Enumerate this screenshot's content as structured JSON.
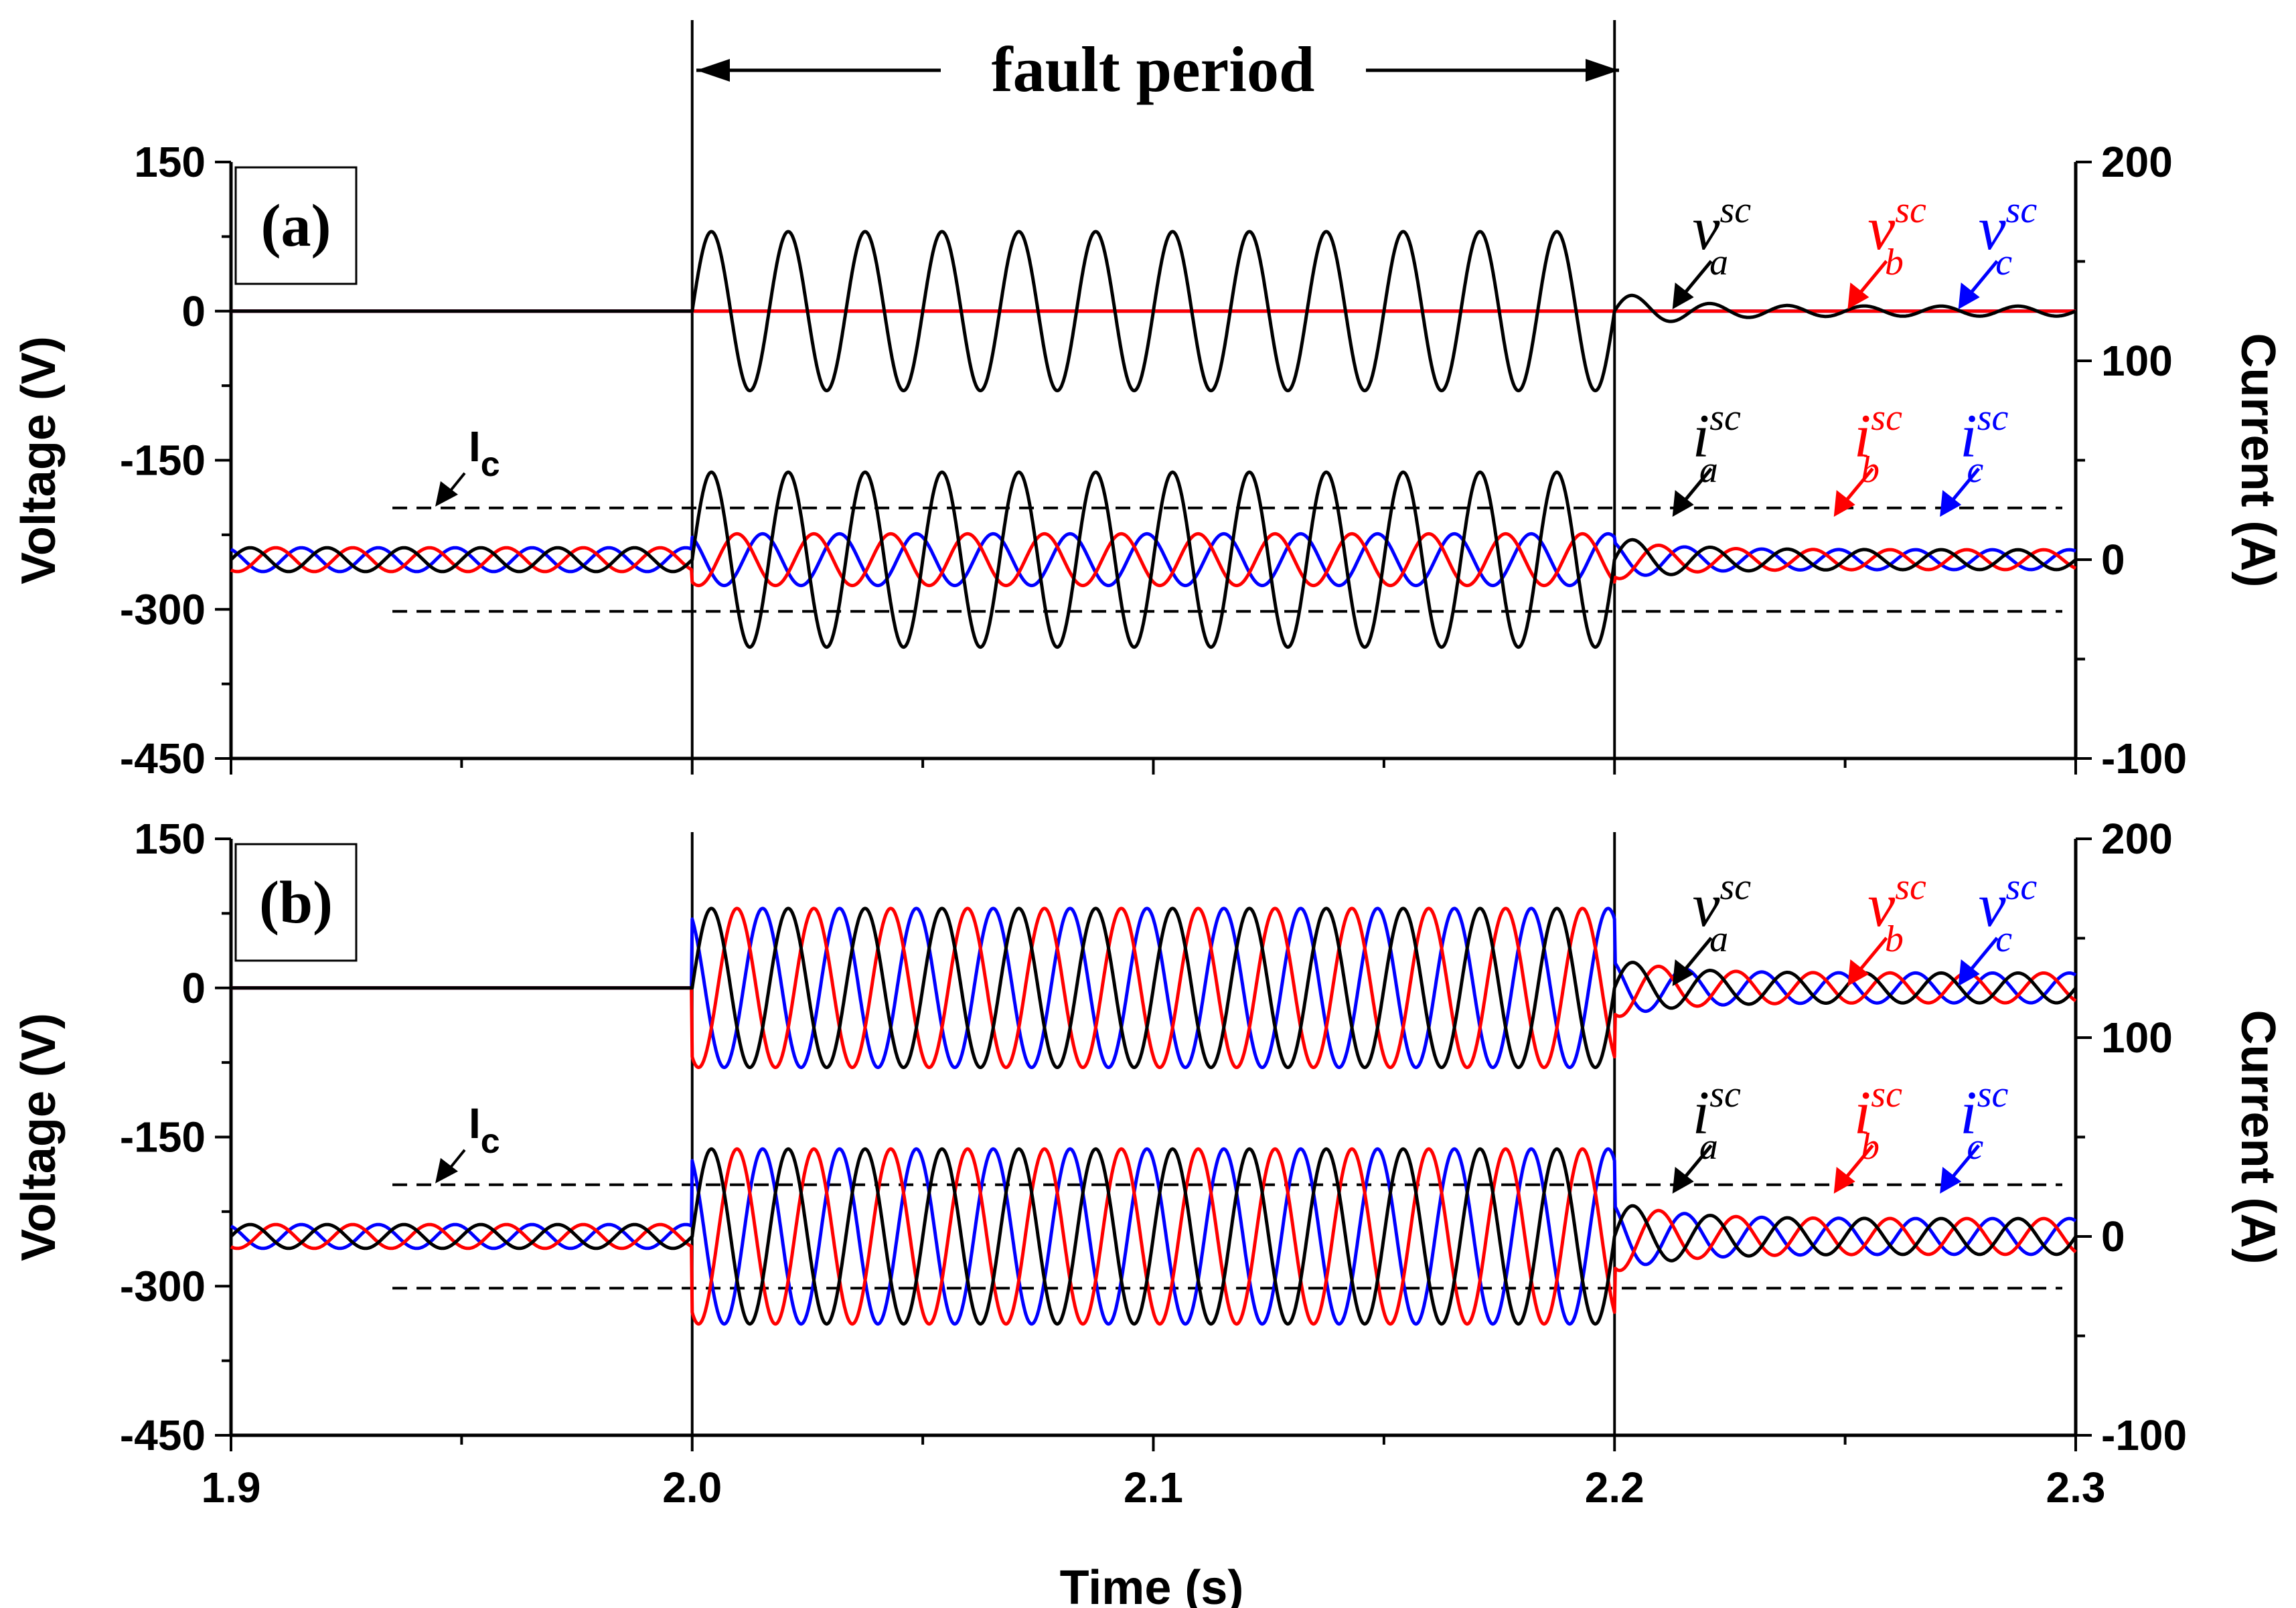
{
  "figure": {
    "header_label": "fault period",
    "xlabel": "Time (s)",
    "colors": {
      "a": "#000000",
      "b": "#ff0000",
      "c": "#0000ff"
    }
  },
  "chart_data": [
    {
      "type": "line",
      "panel_label": "(a)",
      "xlim": [
        1.9,
        2.3
      ],
      "x_ticks": [
        "1.9",
        "2.0",
        "2.1",
        "2.2",
        "2.3"
      ],
      "ylabel_left": "Voltage (V)",
      "ylabel_right": "Current (A)",
      "ylim_left": [
        -450,
        150
      ],
      "ylim_right": [
        -100,
        200
      ],
      "y_ticks_left": [
        "150",
        "0",
        "-150",
        "-300",
        "-450"
      ],
      "y_ticks_right": [
        "200",
        "100",
        "0",
        "-100"
      ],
      "fault_start": 2.0,
      "fault_end": 2.2,
      "frequency_hz": 60,
      "current_limit_label_main": "I",
      "current_limit_label_sub": "c",
      "current_limit": [
        -26,
        26
      ],
      "voltage_series": [
        {
          "phase": "a",
          "label_main": "v",
          "label_sup": "sc",
          "label_sub": "a",
          "pre_fault_amplitude": 0,
          "fault_amplitude": 80,
          "post_fault_initial": 20,
          "post_fault_final": 5
        },
        {
          "phase": "b",
          "label_main": "v",
          "label_sup": "sc",
          "label_sub": "b",
          "pre_fault_amplitude": 0,
          "fault_amplitude": 0,
          "post_fault_initial": 0,
          "post_fault_final": 0
        },
        {
          "phase": "c",
          "label_main": "v",
          "label_sup": "sc",
          "label_sub": "c",
          "pre_fault_amplitude": 0,
          "fault_amplitude": 0,
          "post_fault_initial": 0,
          "post_fault_final": 0
        }
      ],
      "current_series": [
        {
          "phase": "a",
          "label_main": "i",
          "label_sup": "sc",
          "label_sub": "a",
          "pre_fault_amplitude": 6,
          "fault_amplitude": 44,
          "post_fault_initial": 12,
          "post_fault_final": 5
        },
        {
          "phase": "b",
          "label_main": "i",
          "label_sup": "sc",
          "label_sub": "b",
          "pre_fault_amplitude": 6,
          "fault_amplitude": 13,
          "post_fault_initial": 10,
          "post_fault_final": 5
        },
        {
          "phase": "c",
          "label_main": "i",
          "label_sup": "sc",
          "label_sub": "c",
          "pre_fault_amplitude": 6,
          "fault_amplitude": 13,
          "post_fault_initial": 10,
          "post_fault_final": 5
        }
      ]
    },
    {
      "type": "line",
      "panel_label": "(b)",
      "xlim": [
        1.9,
        2.3
      ],
      "x_ticks": [
        "1.9",
        "2.0",
        "2.1",
        "2.2",
        "2.3"
      ],
      "ylabel_left": "Voltage (V)",
      "ylabel_right": "Current (A)",
      "ylim_left": [
        -450,
        150
      ],
      "ylim_right": [
        -100,
        200
      ],
      "y_ticks_left": [
        "150",
        "0",
        "-150",
        "-300",
        "-450"
      ],
      "y_ticks_right": [
        "200",
        "100",
        "0",
        "-100"
      ],
      "fault_start": 2.0,
      "fault_end": 2.2,
      "frequency_hz": 60,
      "current_limit_label_main": "I",
      "current_limit_label_sub": "c",
      "current_limit": [
        -26,
        26
      ],
      "voltage_series": [
        {
          "phase": "a",
          "label_main": "v",
          "label_sup": "sc",
          "label_sub": "a",
          "pre_fault_amplitude": 0,
          "fault_amplitude": 80,
          "post_fault_initial": 30,
          "post_fault_final": 15
        },
        {
          "phase": "b",
          "label_main": "v",
          "label_sup": "sc",
          "label_sub": "b",
          "pre_fault_amplitude": 0,
          "fault_amplitude": 80,
          "post_fault_initial": 30,
          "post_fault_final": 15
        },
        {
          "phase": "c",
          "label_main": "v",
          "label_sup": "sc",
          "label_sub": "c",
          "pre_fault_amplitude": 0,
          "fault_amplitude": 80,
          "post_fault_initial": 30,
          "post_fault_final": 15
        }
      ],
      "current_series": [
        {
          "phase": "a",
          "label_main": "i",
          "label_sup": "sc",
          "label_sub": "a",
          "pre_fault_amplitude": 6,
          "fault_amplitude": 44,
          "post_fault_initial": 18,
          "post_fault_final": 9
        },
        {
          "phase": "b",
          "label_main": "i",
          "label_sup": "sc",
          "label_sub": "b",
          "pre_fault_amplitude": 6,
          "fault_amplitude": 44,
          "post_fault_initial": 18,
          "post_fault_final": 9
        },
        {
          "phase": "c",
          "label_main": "i",
          "label_sup": "sc",
          "label_sub": "c",
          "pre_fault_amplitude": 6,
          "fault_amplitude": 44,
          "post_fault_initial": 18,
          "post_fault_final": 9
        }
      ]
    }
  ]
}
